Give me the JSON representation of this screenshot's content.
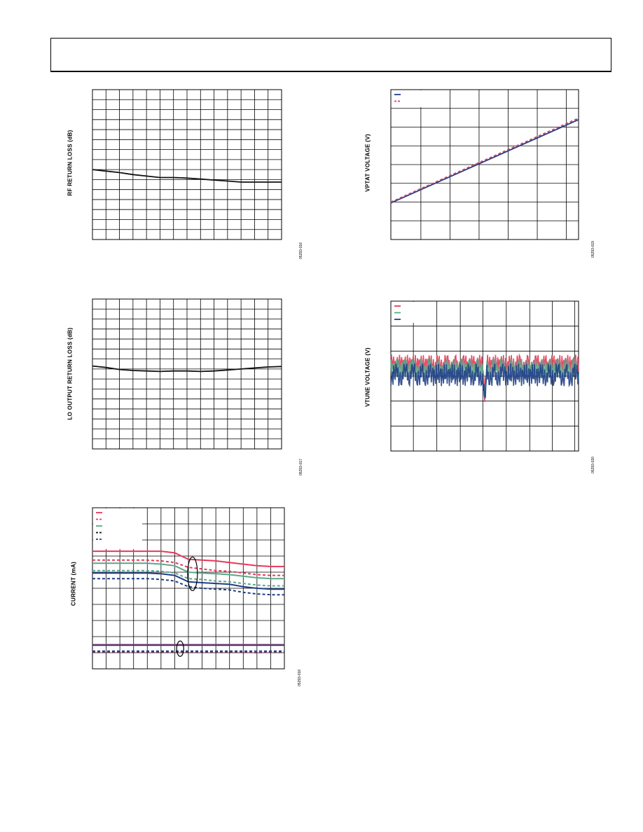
{
  "page": {
    "header_text": ""
  },
  "colors": {
    "red": "#e8385a",
    "green": "#5aa88a",
    "blue": "#1f3f86",
    "black": "#111111",
    "purple": "#7a2a6a"
  },
  "chart_data": [
    {
      "id": "rf-return-loss",
      "type": "line",
      "ylabel": "RF RETURN LOSS (dB)",
      "figure_code": "05293-016",
      "grid": true,
      "x": [
        0,
        1,
        2,
        3,
        4,
        5,
        6,
        7,
        8,
        9,
        10,
        11,
        12,
        13,
        14
      ],
      "xlim": [
        0,
        14
      ],
      "ylim": [
        0,
        15
      ],
      "series": [
        {
          "color": "black",
          "values": [
            7.0,
            6.85,
            6.7,
            6.5,
            6.35,
            6.2,
            6.2,
            6.15,
            6.05,
            5.95,
            5.85,
            5.75,
            5.75,
            5.75,
            5.75
          ]
        }
      ]
    },
    {
      "id": "vptat-voltage",
      "type": "line",
      "ylabel": "VPTAT VOLTAGE (V)",
      "figure_code": "05293-019",
      "grid": true,
      "legend": true,
      "xlim": [
        0,
        31
      ],
      "ylim": [
        0,
        8
      ],
      "x": [
        0,
        31
      ],
      "series": [
        {
          "color": "blue",
          "dash": false,
          "values": [
            1.95,
            6.4
          ]
        },
        {
          "color": "red",
          "dash": true,
          "values": [
            2.0,
            6.48
          ]
        }
      ]
    },
    {
      "id": "lo-output-return-loss",
      "type": "line",
      "ylabel": "LO OUTPUT RETURN LOSS (dB)",
      "figure_code": "05293-017",
      "grid": true,
      "x": [
        0,
        1,
        2,
        3,
        4,
        5,
        6,
        7,
        8,
        9,
        10,
        11,
        12,
        13,
        14
      ],
      "xlim": [
        0,
        14
      ],
      "ylim": [
        0,
        15
      ],
      "series": [
        {
          "color": "black",
          "values": [
            8.3,
            8.15,
            7.95,
            7.85,
            7.8,
            7.75,
            7.8,
            7.8,
            7.75,
            7.8,
            7.9,
            8.0,
            8.1,
            8.2,
            8.25
          ]
        }
      ]
    },
    {
      "id": "vtune-voltage",
      "type": "line",
      "ylabel": "VTUNE VOLTAGE (V)",
      "figure_code": "05293-020",
      "grid": true,
      "legend": true,
      "xlim": [
        0,
        100
      ],
      "ylim": [
        0,
        6
      ],
      "series": [
        {
          "color": "red",
          "base": 3.5,
          "amp": 0.35
        },
        {
          "color": "green",
          "base": 3.3,
          "amp": 0.4
        },
        {
          "color": "blue",
          "base": 3.05,
          "amp": 0.45
        }
      ]
    },
    {
      "id": "current",
      "type": "line",
      "ylabel": "CURRENT (mA)",
      "figure_code": "05293-018",
      "grid": true,
      "legend": true,
      "x": [
        0,
        1,
        2,
        3,
        4,
        5,
        6,
        7,
        8,
        9,
        10,
        11,
        12,
        13,
        14
      ],
      "xlim": [
        0,
        14
      ],
      "ylim": [
        0,
        10
      ],
      "series": [
        {
          "color": "red",
          "dash": false,
          "values": [
            7.3,
            7.3,
            7.3,
            7.3,
            7.3,
            7.3,
            7.2,
            6.8,
            6.75,
            6.7,
            6.6,
            6.5,
            6.4,
            6.35,
            6.35
          ]
        },
        {
          "color": "red",
          "dash": true,
          "values": [
            6.75,
            6.75,
            6.75,
            6.75,
            6.75,
            6.7,
            6.6,
            6.3,
            6.2,
            6.1,
            6.05,
            5.95,
            5.85,
            5.8,
            5.8
          ]
        },
        {
          "color": "green",
          "dash": false,
          "values": [
            6.55,
            6.55,
            6.55,
            6.55,
            6.55,
            6.5,
            6.4,
            6.0,
            5.95,
            5.9,
            5.85,
            5.75,
            5.65,
            5.6,
            5.6
          ]
        },
        {
          "color": "green",
          "dash": true,
          "values": [
            6.1,
            6.1,
            6.1,
            6.1,
            6.1,
            6.05,
            5.95,
            5.6,
            5.55,
            5.45,
            5.4,
            5.3,
            5.2,
            5.15,
            5.15
          ]
        },
        {
          "color": "blue",
          "dash": false,
          "values": [
            5.95,
            5.95,
            5.95,
            5.95,
            5.95,
            5.9,
            5.8,
            5.4,
            5.35,
            5.3,
            5.25,
            5.1,
            5.0,
            4.95,
            4.95
          ]
        },
        {
          "color": "blue",
          "dash": true,
          "values": [
            5.6,
            5.6,
            5.6,
            5.6,
            5.6,
            5.55,
            5.45,
            5.1,
            5.0,
            4.95,
            4.9,
            4.75,
            4.65,
            4.6,
            4.6
          ]
        },
        {
          "color": "red",
          "dash": false,
          "values": [
            1.5,
            1.5,
            1.5,
            1.5,
            1.5,
            1.5,
            1.5,
            1.5,
            1.5,
            1.5,
            1.5,
            1.5,
            1.5,
            1.5,
            1.5
          ]
        },
        {
          "color": "blue",
          "dash": false,
          "values": [
            1.47,
            1.47,
            1.47,
            1.47,
            1.47,
            1.47,
            1.47,
            1.47,
            1.47,
            1.47,
            1.47,
            1.47,
            1.47,
            1.47,
            1.47
          ]
        },
        {
          "color": "purple",
          "dash": true,
          "values": [
            1.05,
            1.05,
            1.05,
            1.05,
            1.05,
            1.05,
            1.05,
            1.05,
            1.05,
            1.05,
            1.05,
            1.05,
            1.0,
            1.05,
            1.05
          ]
        },
        {
          "color": "blue",
          "dash": true,
          "values": [
            1.1,
            1.1,
            1.1,
            1.1,
            1.1,
            1.1,
            1.1,
            1.1,
            1.1,
            1.1,
            1.1,
            1.1,
            1.1,
            1.1,
            1.1
          ]
        }
      ]
    }
  ]
}
